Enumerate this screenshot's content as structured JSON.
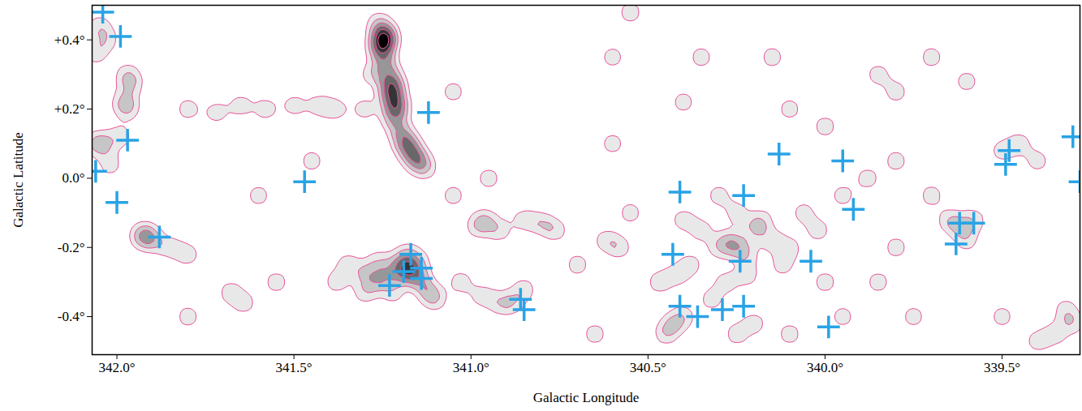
{
  "chart_data": {
    "type": "scatter",
    "xlabel": "Galactic Longitude",
    "ylabel": "Galactic Latitude",
    "xlim": [
      342.07,
      339.28
    ],
    "ylim": [
      -0.51,
      0.5
    ],
    "xticks": [
      {
        "value": 342.0,
        "label": "342.0°"
      },
      {
        "value": 341.5,
        "label": "341.5°"
      },
      {
        "value": 341.0,
        "label": "341.0°"
      },
      {
        "value": 340.5,
        "label": "340.5°"
      },
      {
        "value": 340.0,
        "label": "340.0°"
      },
      {
        "value": 339.5,
        "label": "339.5°"
      }
    ],
    "yticks": [
      {
        "value": -0.4,
        "label": "-0.4°"
      },
      {
        "value": -0.2,
        "label": "-0.2°"
      },
      {
        "value": 0.0,
        "label": "0.0°"
      },
      {
        "value": 0.2,
        "label": "+0.2°"
      },
      {
        "value": 0.4,
        "label": "+0.4°"
      }
    ],
    "series": [
      {
        "type": "density",
        "color": "#e8559c",
        "x": [
          341.26,
          341.25,
          341.24,
          341.26,
          341.25,
          341.24,
          341.23,
          341.22,
          341.23,
          341.22,
          341.21,
          341.22,
          341.2,
          341.19,
          341.17,
          341.15,
          341.13,
          341.24,
          341.25,
          341.22,
          341.21,
          341.18,
          341.16,
          341.28,
          341.3,
          342.05,
          342.03,
          342.06,
          341.97,
          341.96,
          341.98,
          341.97,
          342.06,
          342.04,
          341.99,
          342.02,
          341.8,
          341.72,
          341.65,
          341.58,
          341.5,
          341.43,
          341.38,
          341.93,
          341.9,
          341.85,
          341.8,
          341.92,
          341.68,
          341.64,
          341.35,
          341.3,
          341.27,
          341.24,
          341.2,
          341.18,
          341.16,
          341.14,
          341.12,
          341.22,
          341.3,
          341.38,
          341.18,
          341.19,
          341.15,
          341.1,
          341.26,
          341.03,
          340.97,
          340.92,
          340.88,
          340.85,
          340.98,
          340.96,
          340.92,
          340.85,
          340.8,
          340.76,
          340.95,
          341.05,
          340.7,
          340.62,
          340.6,
          340.55,
          340.65,
          340.45,
          340.43,
          340.4,
          340.47,
          340.42,
          340.38,
          340.3,
          340.27,
          340.25,
          340.22,
          340.2,
          340.18,
          340.15,
          340.22,
          340.28,
          340.32,
          340.12,
          340.1,
          340.25,
          340.3,
          340.4,
          340.06,
          340.02,
          340.0,
          339.95,
          340.2,
          340.25,
          340.1,
          340.35,
          340.55,
          340.58,
          339.95,
          339.88,
          339.8,
          339.7,
          339.65,
          339.62,
          339.58,
          339.6,
          339.5,
          339.45,
          339.4,
          339.8,
          339.85,
          339.6,
          339.7,
          339.35,
          339.3,
          339.4,
          339.32,
          339.5,
          339.75,
          339.85,
          339.8,
          340.35,
          340.15,
          340.0,
          340.1,
          340.4,
          341.55,
          341.8,
          341.45,
          341.6,
          341.05,
          340.6
        ],
        "y": [
          0.45,
          0.42,
          0.4,
          0.38,
          0.36,
          0.33,
          0.3,
          0.27,
          0.25,
          0.22,
          0.2,
          0.17,
          0.14,
          0.11,
          0.08,
          0.05,
          0.03,
          0.41,
          0.39,
          0.26,
          0.21,
          0.1,
          0.06,
          0.3,
          0.2,
          0.44,
          0.4,
          0.36,
          0.3,
          0.27,
          0.22,
          0.2,
          0.1,
          0.1,
          0.12,
          0.04,
          0.2,
          0.19,
          0.21,
          0.2,
          0.21,
          0.21,
          0.2,
          -0.17,
          -0.18,
          -0.2,
          -0.22,
          -0.16,
          -0.33,
          -0.36,
          -0.25,
          -0.27,
          -0.3,
          -0.28,
          -0.25,
          -0.22,
          -0.27,
          -0.3,
          -0.33,
          -0.33,
          -0.33,
          -0.3,
          -0.28,
          -0.26,
          -0.24,
          -0.35,
          -0.24,
          -0.3,
          -0.34,
          -0.36,
          -0.36,
          -0.32,
          -0.14,
          -0.12,
          -0.15,
          -0.12,
          -0.13,
          -0.15,
          0.0,
          -0.05,
          -0.25,
          -0.18,
          0.35,
          0.48,
          -0.45,
          -0.45,
          -0.42,
          -0.4,
          -0.3,
          -0.28,
          -0.25,
          -0.2,
          -0.18,
          -0.2,
          -0.22,
          -0.15,
          -0.12,
          -0.18,
          -0.28,
          -0.3,
          -0.35,
          -0.25,
          -0.2,
          -0.1,
          -0.05,
          -0.12,
          -0.1,
          -0.15,
          -0.3,
          -0.4,
          -0.42,
          -0.45,
          -0.45,
          -0.15,
          -0.1,
          -0.2,
          -0.05,
          0.0,
          0.05,
          -0.05,
          -0.12,
          -0.14,
          -0.12,
          -0.18,
          0.08,
          0.1,
          0.05,
          0.25,
          0.3,
          0.28,
          0.35,
          -0.45,
          -0.42,
          -0.47,
          -0.38,
          -0.4,
          -0.4,
          -0.3,
          -0.2,
          0.35,
          0.35,
          0.15,
          0.2,
          0.22,
          -0.3,
          -0.4,
          0.05,
          -0.05,
          0.25,
          0.1
        ]
      },
      {
        "type": "scatter",
        "marker": "plus",
        "color": "#29a3e6",
        "x": [
          342.04,
          341.99,
          341.97,
          342.06,
          342.0,
          341.88,
          341.12,
          341.47,
          341.17,
          341.14,
          341.19,
          341.23,
          341.14,
          340.86,
          340.85,
          340.41,
          340.43,
          340.41,
          340.36,
          340.29,
          340.23,
          340.23,
          340.24,
          340.04,
          340.13,
          339.95,
          339.92,
          339.99,
          339.48,
          339.49,
          339.62,
          339.58,
          339.63,
          339.3,
          339.28
        ],
        "y": [
          0.48,
          0.41,
          0.11,
          0.02,
          -0.07,
          -0.17,
          0.19,
          -0.01,
          -0.22,
          -0.26,
          -0.27,
          -0.31,
          -0.29,
          -0.35,
          -0.38,
          -0.04,
          -0.22,
          -0.37,
          -0.4,
          -0.38,
          -0.37,
          -0.05,
          -0.24,
          -0.24,
          0.07,
          0.05,
          -0.09,
          -0.43,
          0.08,
          0.04,
          -0.13,
          -0.13,
          -0.19,
          0.12,
          -0.01
        ]
      }
    ]
  }
}
